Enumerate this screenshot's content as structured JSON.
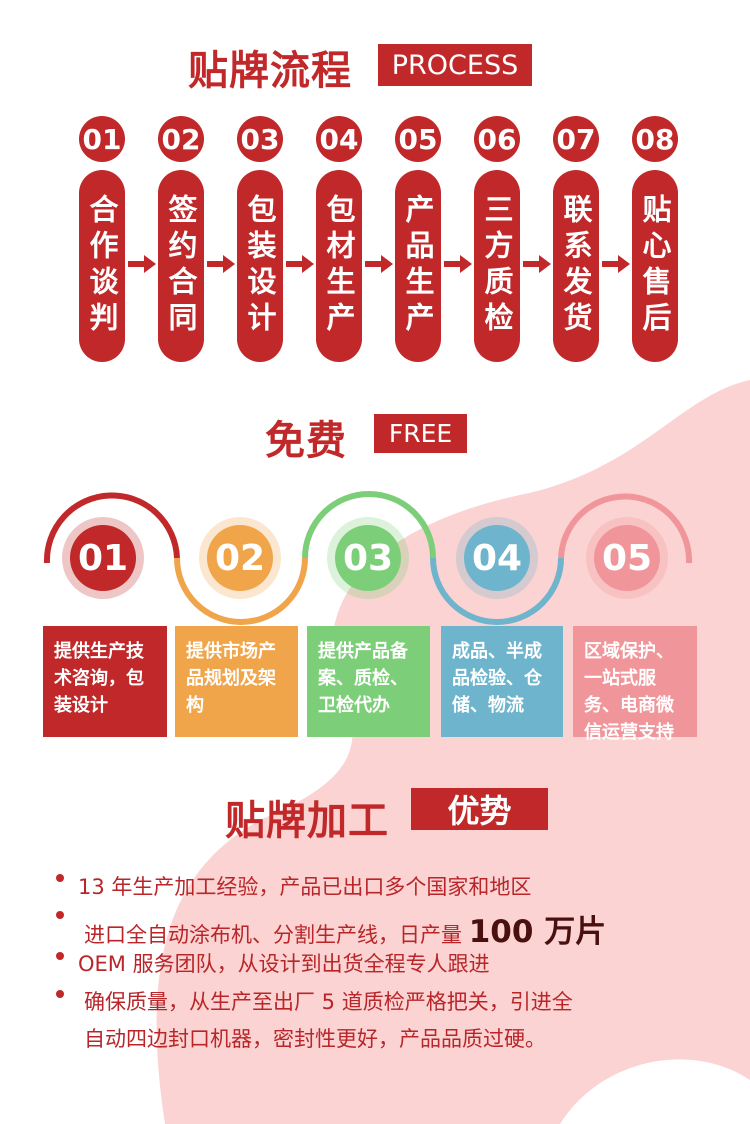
{
  "colors": {
    "red": "#c0282a",
    "orange": "#f0a54a",
    "green": "#7ccf78",
    "blue": "#6db4cc",
    "pink": "#f0959a",
    "background_blob": "#fbd0cf"
  },
  "process": {
    "title": "贴牌流程",
    "badge": "PROCESS",
    "steps": [
      {
        "num": "01",
        "label": "合作谈判"
      },
      {
        "num": "02",
        "label": "签约合同"
      },
      {
        "num": "03",
        "label": "包装设计"
      },
      {
        "num": "04",
        "label": "包材生产"
      },
      {
        "num": "05",
        "label": "产品生产"
      },
      {
        "num": "06",
        "label": "三方质检"
      },
      {
        "num": "07",
        "label": "联系发货"
      },
      {
        "num": "08",
        "label": "贴心售后"
      }
    ]
  },
  "free": {
    "title": "免费",
    "badge": "FREE",
    "items": [
      {
        "num": "01",
        "text": "提供生产技术咨询，包装设计"
      },
      {
        "num": "02",
        "text": "提供市场产品规划及架构"
      },
      {
        "num": "03",
        "text": "提供产品备案、质检、卫检代办"
      },
      {
        "num": "04",
        "text": "成品、半成品检验、仓储、物流"
      },
      {
        "num": "05",
        "text": "区域保护、一站式服务、电商微信运营支持"
      }
    ]
  },
  "advantages": {
    "title": "贴牌加工",
    "badge": "优势",
    "items": [
      {
        "text": "13 年生产加工经验，产品已出口多个国家和地区"
      },
      {
        "text": "进口全自动涂布机、分割生产线，日产量 ",
        "highlight": "100 万片"
      },
      {
        "text": "OEM 服务团队，从设计到出货全程专人跟进"
      },
      {
        "text": "确保质量，从生产至出厂 5 道质检严格把关，引进全",
        "text2": "自动四边封口机器，密封性更好，产品品质过硬。"
      }
    ]
  }
}
